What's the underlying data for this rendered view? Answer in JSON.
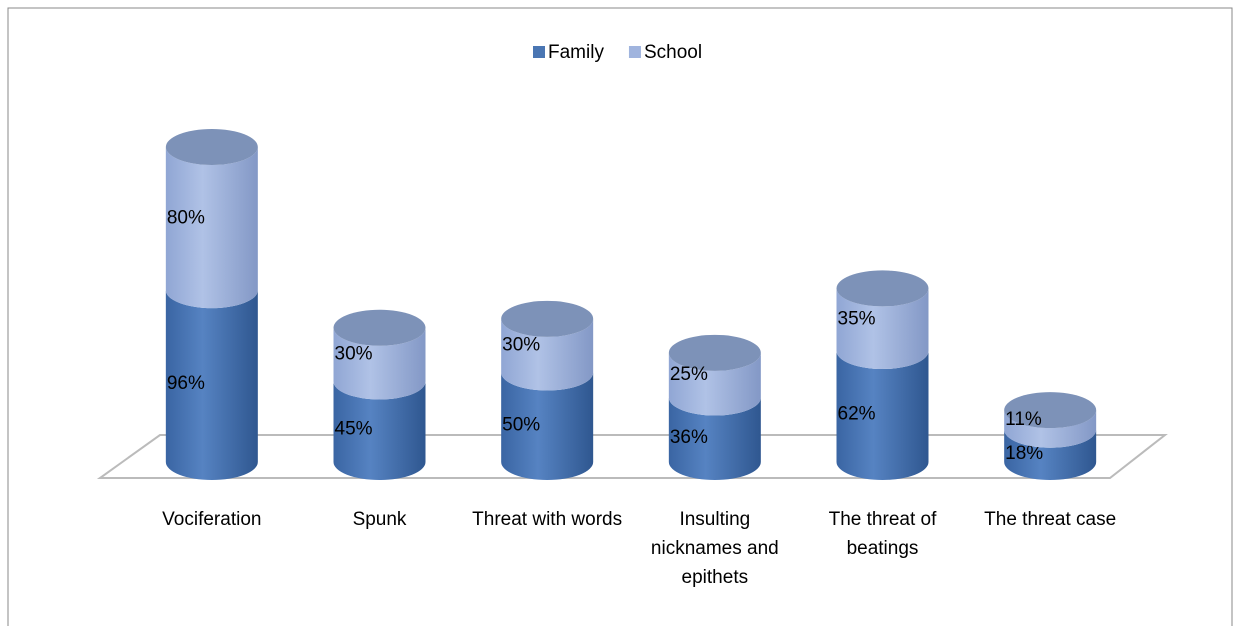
{
  "chart_data": {
    "type": "stacked-cylinder",
    "categories": [
      "Vociferation",
      "Spunk",
      "Threat with words",
      "Insulting nicknames and epithets",
      "The threat of beatings",
      "The threat case"
    ],
    "series": [
      {
        "name": "Family",
        "color": "#4a76b3",
        "values": [
          96,
          45,
          50,
          36,
          62,
          18
        ],
        "value_labels": [
          "96%",
          "45%",
          "50%",
          "36%",
          "62%",
          "18%"
        ]
      },
      {
        "name": "School",
        "color": "#a0b4de",
        "values": [
          80,
          30,
          30,
          25,
          35,
          11
        ],
        "value_labels": [
          "80%",
          "30%",
          "30%",
          "25%",
          "35%",
          "11%"
        ]
      }
    ],
    "legend": "top"
  }
}
